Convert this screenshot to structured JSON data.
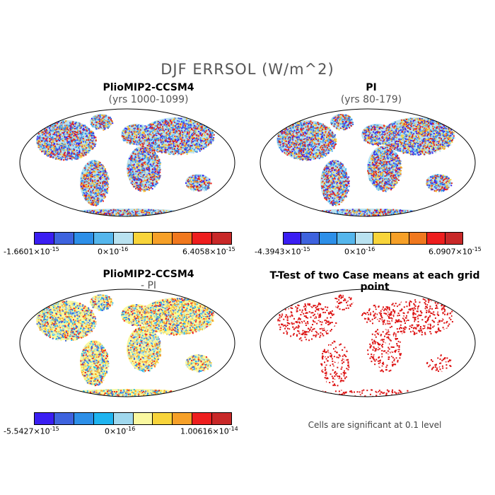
{
  "title": "DJF ERRSOL (W/m^2)",
  "panels": [
    {
      "id": "pliomip",
      "title": "PlioMIP2-CCSM4",
      "subtitle": "(yrs 1000-1099)",
      "colorbar": {
        "min": "-1.6601×10",
        "min_exp": "-15",
        "mid": "0×10",
        "mid_exp": "-16",
        "max": "6.4058×10",
        "max_exp": "-15",
        "colors": [
          "#3a1ef2",
          "#3e63de",
          "#2d8fe8",
          "#55b6ec",
          "#b9e2f0",
          "#f8d43a",
          "#f6a028",
          "#f0781e",
          "#ee1e1e",
          "#c82828"
        ]
      }
    },
    {
      "id": "pi",
      "title": "PI",
      "subtitle": "(yrs 80-179)",
      "colorbar": {
        "min": "-4.3943×10",
        "min_exp": "-15",
        "mid": "0×10",
        "mid_exp": "-16",
        "max": "6.0907×10",
        "max_exp": "-15",
        "colors": [
          "#3a1ef2",
          "#3e63de",
          "#2d8fe8",
          "#55b6ec",
          "#b9e2f0",
          "#f8d43a",
          "#f6a028",
          "#f0781e",
          "#ee1e1e",
          "#c82828"
        ]
      }
    },
    {
      "id": "diff",
      "title": "PlioMIP2-CCSM4",
      "subtitle": "- PI",
      "colorbar": {
        "min": "-5.5427×10",
        "min_exp": "-15",
        "mid": "0×10",
        "mid_exp": "-16",
        "max": "1.00616×10",
        "max_exp": "-14",
        "colors": [
          "#3a1ef2",
          "#3e63de",
          "#2d8fe8",
          "#1eb4f0",
          "#a0d8ee",
          "#faf8a0",
          "#f8d43a",
          "#f6a028",
          "#ee1e1e",
          "#c82828"
        ]
      }
    },
    {
      "id": "ttest",
      "title": "T-Test of two Case means at each grid point",
      "note": "Cells are significant at 0.1 level"
    }
  ]
}
